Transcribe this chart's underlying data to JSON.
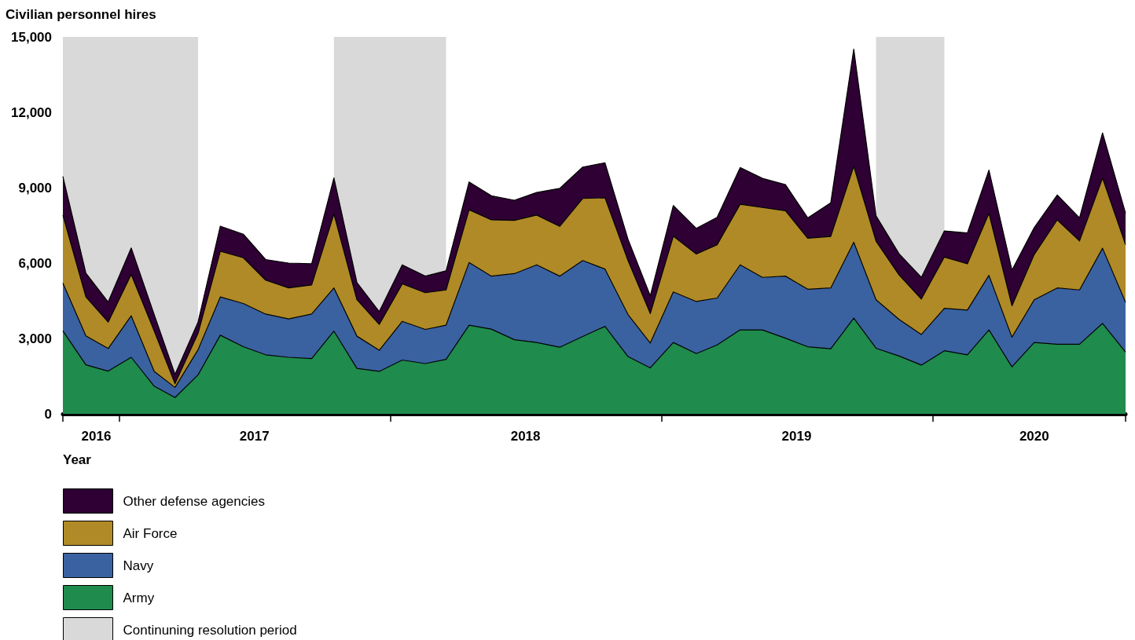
{
  "chart_data": {
    "type": "area",
    "stacked": true,
    "ylabel": "Civilian personnel hires",
    "xlabel": "Year",
    "x": [
      "2016-10",
      "2016-11",
      "2016-12",
      "2017-01",
      "2017-02",
      "2017-03",
      "2017-04",
      "2017-05",
      "2017-06",
      "2017-07",
      "2017-08",
      "2017-09",
      "2017-10",
      "2017-11",
      "2017-12",
      "2018-01",
      "2018-02",
      "2018-03",
      "2018-04",
      "2018-05",
      "2018-06",
      "2018-07",
      "2018-08",
      "2018-09",
      "2018-10",
      "2018-11",
      "2018-12",
      "2019-01",
      "2019-02",
      "2019-03",
      "2019-04",
      "2019-05",
      "2019-06",
      "2019-07",
      "2019-08",
      "2019-09",
      "2019-10",
      "2019-11",
      "2019-12",
      "2020-01",
      "2020-02",
      "2020-03",
      "2020-04",
      "2020-05",
      "2020-06",
      "2020-07",
      "2020-08",
      "2020-09"
    ],
    "series": [
      {
        "name": "Army",
        "color": "#1f8b4c",
        "values": [
          3300,
          1950,
          1700,
          2250,
          1100,
          650,
          1550,
          3130,
          2670,
          2350,
          2250,
          2200,
          3290,
          1810,
          1690,
          2140,
          2000,
          2170,
          3530,
          3370,
          2950,
          2840,
          2650,
          3080,
          3480,
          2280,
          1830,
          2840,
          2400,
          2740,
          3340,
          3340,
          3010,
          2670,
          2590,
          3810,
          2610,
          2300,
          1940,
          2510,
          2350,
          3340,
          1870,
          2840,
          2770,
          2770,
          3600,
          2460
        ]
      },
      {
        "name": "Navy",
        "color": "#3a62a0",
        "values": [
          1900,
          1150,
          900,
          1650,
          590,
          400,
          1000,
          1520,
          1720,
          1620,
          1530,
          1770,
          1720,
          1280,
          840,
          1540,
          1360,
          1360,
          2490,
          2110,
          2630,
          3090,
          2830,
          3020,
          2280,
          1670,
          990,
          2010,
          2070,
          1870,
          2590,
          2090,
          2470,
          2290,
          2420,
          3020,
          1930,
          1460,
          1220,
          1690,
          1780,
          2170,
          1180,
          1700,
          2240,
          2160,
          2990,
          1980
        ]
      },
      {
        "name": "Air Force",
        "color": "#b08a26",
        "values": [
          2700,
          1550,
          1050,
          1650,
          1610,
          150,
          650,
          1820,
          1820,
          1350,
          1230,
          1160,
          2940,
          1450,
          1030,
          1490,
          1460,
          1400,
          2100,
          2240,
          2120,
          1980,
          1980,
          2470,
          2840,
          2150,
          1170,
          2220,
          1890,
          2120,
          2410,
          2780,
          2600,
          2030,
          2050,
          3020,
          2330,
          1770,
          1410,
          2040,
          1840,
          2470,
          1250,
          1800,
          2710,
          1950,
          2790,
          2290
        ]
      },
      {
        "name": "Other defense agencies",
        "color": "#2e0033",
        "values": [
          1550,
          950,
          800,
          1050,
          650,
          370,
          450,
          1000,
          940,
          820,
          990,
          840,
          1440,
          680,
          510,
          760,
          660,
          760,
          1110,
          960,
          800,
          900,
          1510,
          1250,
          1390,
          850,
          710,
          1220,
          1020,
          1090,
          1460,
          1160,
          1040,
          810,
          1340,
          4660,
          1010,
          840,
          860,
          1040,
          1230,
          1720,
          1420,
          1070,
          990,
          920,
          1800,
          1250
        ]
      }
    ],
    "xlim": [
      "2016-10",
      "2020-09"
    ],
    "xticks": [
      {
        "value": "2016-10",
        "label": null
      },
      {
        "value": "2016-11-15",
        "label": "2016"
      },
      {
        "value": "2016-12-16",
        "label": null
      },
      {
        "value": "2017-06-16",
        "label": "2017"
      },
      {
        "value": "2017-12-16",
        "label": null
      },
      {
        "value": "2018-06-16",
        "label": "2018"
      },
      {
        "value": "2018-12-16",
        "label": null
      },
      {
        "value": "2019-06-16",
        "label": "2019"
      },
      {
        "value": "2019-12-16",
        "label": null
      },
      {
        "value": "2020-05",
        "label": "2020"
      },
      {
        "value": "2020-09",
        "label": null
      }
    ],
    "ylim": [
      0,
      15000
    ],
    "yticks": [
      {
        "value": 0,
        "label": "0"
      },
      {
        "value": 3000,
        "label": "3,000"
      },
      {
        "value": 6000,
        "label": "6,000"
      },
      {
        "value": 9000,
        "label": "9,000"
      },
      {
        "value": 12000,
        "label": "12,000"
      },
      {
        "value": 15000,
        "label": "15,000"
      }
    ],
    "bands": [
      {
        "axis": "x",
        "from": "2016-10",
        "to": "2017-04",
        "label": "Continuning resolution period",
        "color": "#d9d9d9"
      },
      {
        "axis": "x",
        "from": "2017-10",
        "to": "2018-03",
        "color": "#d9d9d9"
      },
      {
        "axis": "x",
        "from": "2019-10",
        "to": "2020-01",
        "color": "#d9d9d9"
      }
    ],
    "grid": false,
    "legend": "bottom left",
    "marker": "none",
    "line_style": "solid"
  }
}
